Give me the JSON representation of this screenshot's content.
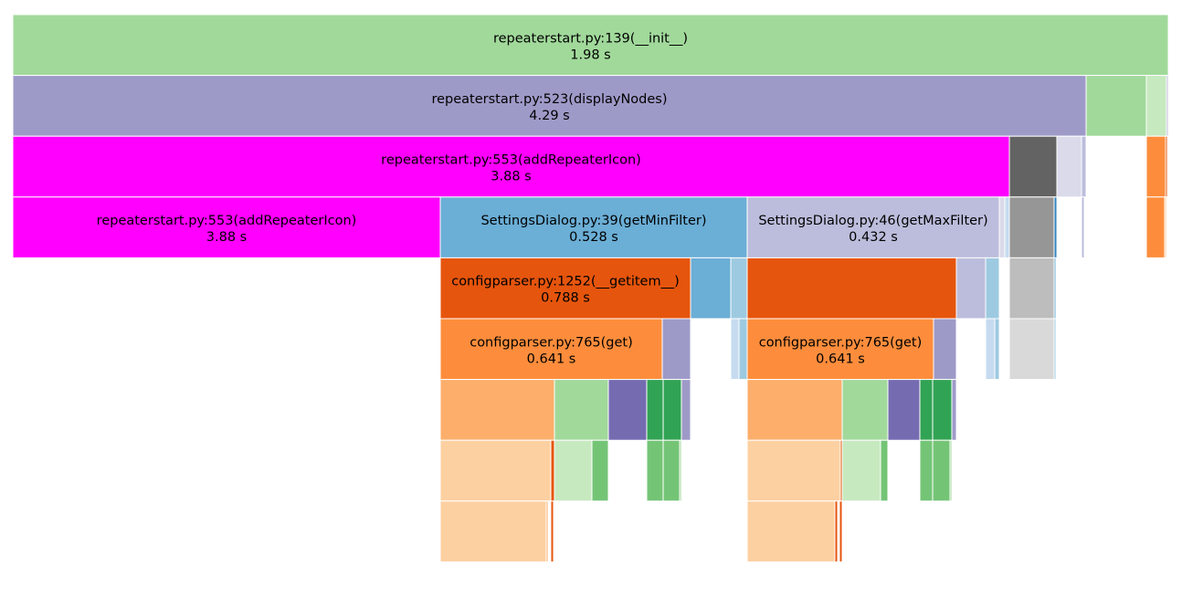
{
  "chart_data": {
    "type": "icicle",
    "x_range": [
      0,
      1265
    ],
    "depth_count": 9,
    "nodes": [
      {
        "id": "n0",
        "label": "repeaterstart.py:139(__init__)",
        "value": "1.98 s",
        "depth": 0,
        "start": 0,
        "end": 1265,
        "color": "#a1d99b"
      },
      {
        "id": "n1",
        "label": "repeaterstart.py:523(displayNodes)",
        "value": "4.29 s",
        "depth": 1,
        "start": 0,
        "end": 1175,
        "color": "#9e9ac8"
      },
      {
        "depth": 1,
        "start": 1175,
        "end": 1241,
        "color": "#a1d99b"
      },
      {
        "depth": 1,
        "start": 1241,
        "end": 1263,
        "color": "#c7e9c0"
      },
      {
        "depth": 1,
        "start": 1263,
        "end": 1265,
        "color": "#bcbddc"
      },
      {
        "id": "n2",
        "label": "repeaterstart.py:553(addRepeaterIcon)",
        "value": "3.88 s",
        "depth": 2,
        "start": 0,
        "end": 1091,
        "color": "#ff00ff"
      },
      {
        "depth": 2,
        "start": 1091,
        "end": 1143,
        "color": "#636363"
      },
      {
        "depth": 2,
        "start": 1143,
        "end": 1170,
        "color": "#dadaeb"
      },
      {
        "depth": 2,
        "start": 1170,
        "end": 1175,
        "color": "#bcbddc"
      },
      {
        "depth": 2,
        "start": 1241,
        "end": 1262,
        "color": "#fd8d3c"
      },
      {
        "depth": 2,
        "start": 1262,
        "end": 1264,
        "color": "#e6550d"
      },
      {
        "id": "n3",
        "label": "repeaterstart.py:553(addRepeaterIcon)",
        "value": "3.88 s",
        "depth": 3,
        "start": 0,
        "end": 468,
        "color": "#ff00ff"
      },
      {
        "id": "n4",
        "label": "SettingsDialog.py:39(getMinFilter)",
        "value": "0.528 s",
        "depth": 3,
        "start": 468,
        "end": 804,
        "color": "#6baed6"
      },
      {
        "id": "n5",
        "label": "SettingsDialog.py:46(getMaxFilter)",
        "value": "0.432 s",
        "depth": 3,
        "start": 804,
        "end": 1080,
        "color": "#bcbddc"
      },
      {
        "depth": 3,
        "start": 1080,
        "end": 1086,
        "color": "#dadaeb"
      },
      {
        "depth": 3,
        "start": 1086,
        "end": 1091,
        "color": "#c6dbef"
      },
      {
        "depth": 3,
        "start": 1091,
        "end": 1140,
        "color": "#969696"
      },
      {
        "depth": 3,
        "start": 1140,
        "end": 1143,
        "color": "#3182bd"
      },
      {
        "depth": 3,
        "start": 1170,
        "end": 1173,
        "color": "#bcbddc"
      },
      {
        "depth": 3,
        "start": 1241,
        "end": 1261,
        "color": "#fd8d3c"
      },
      {
        "depth": 3,
        "start": 1261,
        "end": 1263,
        "color": "#fdd0a2"
      },
      {
        "id": "n6",
        "label": "configparser.py:1252(__getitem__)",
        "value": "0.788 s",
        "depth": 4,
        "start": 468,
        "end": 742,
        "color": "#e6550d"
      },
      {
        "depth": 4,
        "start": 742,
        "end": 786,
        "color": "#6baed6"
      },
      {
        "depth": 4,
        "start": 786,
        "end": 804,
        "color": "#9ecae1"
      },
      {
        "depth": 4,
        "start": 804,
        "end": 1033,
        "color": "#e6550d"
      },
      {
        "depth": 4,
        "start": 1033,
        "end": 1065,
        "color": "#bcbddc"
      },
      {
        "depth": 4,
        "start": 1065,
        "end": 1080,
        "color": "#9ecae1"
      },
      {
        "depth": 4,
        "start": 1091,
        "end": 1140,
        "color": "#bdbdbd"
      },
      {
        "depth": 4,
        "start": 1140,
        "end": 1142,
        "color": "#6baed6"
      },
      {
        "depth": 4,
        "start": 1261,
        "end": 1262,
        "color": "#fdd0a2"
      },
      {
        "id": "n7",
        "label": "configparser.py:765(get)",
        "value": "0.641 s",
        "depth": 5,
        "start": 468,
        "end": 711,
        "color": "#fd8d3c"
      },
      {
        "depth": 5,
        "start": 711,
        "end": 742,
        "color": "#9e9ac8"
      },
      {
        "depth": 5,
        "start": 786,
        "end": 795,
        "color": "#c6dbef"
      },
      {
        "depth": 5,
        "start": 795,
        "end": 804,
        "color": "#9ecae1"
      },
      {
        "id": "n8",
        "label": "configparser.py:765(get)",
        "value": "0.641 s",
        "depth": 5,
        "start": 804,
        "end": 1008,
        "color": "#fd8d3c"
      },
      {
        "depth": 5,
        "start": 1008,
        "end": 1033,
        "color": "#9e9ac8"
      },
      {
        "depth": 5,
        "start": 1065,
        "end": 1075,
        "color": "#c6dbef"
      },
      {
        "depth": 5,
        "start": 1075,
        "end": 1080,
        "color": "#9ecae1"
      },
      {
        "depth": 5,
        "start": 1091,
        "end": 1140,
        "color": "#d9d9d9"
      },
      {
        "depth": 5,
        "start": 1140,
        "end": 1142,
        "color": "#9ecae1"
      },
      {
        "depth": 5,
        "start": 1261,
        "end": 1262,
        "color": "#fdd0a2"
      },
      {
        "depth": 6,
        "start": 468,
        "end": 593,
        "color": "#fdae6b"
      },
      {
        "depth": 6,
        "start": 593,
        "end": 652,
        "color": "#a1d99b"
      },
      {
        "depth": 6,
        "start": 652,
        "end": 694,
        "color": "#756bb1"
      },
      {
        "depth": 6,
        "start": 694,
        "end": 712,
        "color": "#31a354"
      },
      {
        "depth": 6,
        "start": 712,
        "end": 732,
        "color": "#31a354"
      },
      {
        "depth": 6,
        "start": 732,
        "end": 742,
        "color": "#9e9ac8"
      },
      {
        "depth": 6,
        "start": 804,
        "end": 908,
        "color": "#fdae6b"
      },
      {
        "depth": 6,
        "start": 908,
        "end": 958,
        "color": "#a1d99b"
      },
      {
        "depth": 6,
        "start": 958,
        "end": 993,
        "color": "#756bb1"
      },
      {
        "depth": 6,
        "start": 993,
        "end": 1007,
        "color": "#31a354"
      },
      {
        "depth": 6,
        "start": 1007,
        "end": 1028,
        "color": "#31a354"
      },
      {
        "depth": 6,
        "start": 1028,
        "end": 1033,
        "color": "#9e9ac8"
      },
      {
        "depth": 6,
        "start": 1261,
        "end": 1262,
        "color": "#fdd0a2"
      },
      {
        "depth": 7,
        "start": 468,
        "end": 589,
        "color": "#fdd0a2"
      },
      {
        "depth": 7,
        "start": 589,
        "end": 593,
        "color": "#e6550d"
      },
      {
        "depth": 7,
        "start": 593,
        "end": 634,
        "color": "#c7e9c0"
      },
      {
        "depth": 7,
        "start": 634,
        "end": 652,
        "color": "#74c476"
      },
      {
        "depth": 7,
        "start": 694,
        "end": 712,
        "color": "#74c476"
      },
      {
        "depth": 7,
        "start": 712,
        "end": 730,
        "color": "#74c476"
      },
      {
        "depth": 7,
        "start": 730,
        "end": 732,
        "color": "#a1d99b"
      },
      {
        "depth": 7,
        "start": 804,
        "end": 906,
        "color": "#fdd0a2"
      },
      {
        "depth": 7,
        "start": 906,
        "end": 908,
        "color": "#e6550d"
      },
      {
        "depth": 7,
        "start": 908,
        "end": 950,
        "color": "#c7e9c0"
      },
      {
        "depth": 7,
        "start": 950,
        "end": 958,
        "color": "#74c476"
      },
      {
        "depth": 7,
        "start": 993,
        "end": 1007,
        "color": "#74c476"
      },
      {
        "depth": 7,
        "start": 1007,
        "end": 1026,
        "color": "#74c476"
      },
      {
        "depth": 7,
        "start": 1026,
        "end": 1028,
        "color": "#a1d99b"
      },
      {
        "depth": 7,
        "start": 1261,
        "end": 1262,
        "color": "#fdd0a2"
      },
      {
        "depth": 8,
        "start": 468,
        "end": 584,
        "color": "#fdd0a2"
      },
      {
        "depth": 8,
        "start": 584,
        "end": 586,
        "color": "#fdae6b"
      },
      {
        "depth": 8,
        "start": 589,
        "end": 592,
        "color": "#e6550d"
      },
      {
        "depth": 8,
        "start": 804,
        "end": 900,
        "color": "#fdd0a2"
      },
      {
        "depth": 8,
        "start": 900,
        "end": 903,
        "color": "#e6550d"
      },
      {
        "depth": 8,
        "start": 905,
        "end": 908,
        "color": "#e6550d"
      }
    ]
  }
}
